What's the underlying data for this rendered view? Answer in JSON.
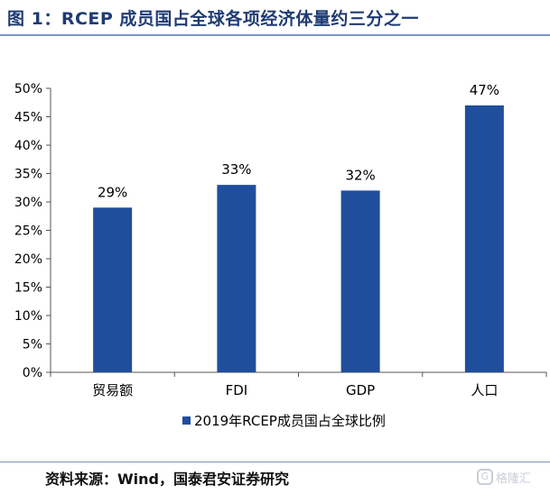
{
  "header": {
    "title": "图 1：RCEP 成员国占全球各项经济体量约三分之一"
  },
  "chart_data": {
    "type": "bar",
    "categories": [
      "贸易额",
      "FDI",
      "GDP",
      "人口"
    ],
    "series": [
      {
        "name": "2019年RCEP成员国占全球比例",
        "values": [
          29,
          33,
          32,
          47
        ],
        "color": "#1f4e9c"
      }
    ],
    "data_labels": [
      "29%",
      "33%",
      "32%",
      "47%"
    ],
    "y_ticks": [
      "0%",
      "5%",
      "10%",
      "15%",
      "20%",
      "25%",
      "30%",
      "35%",
      "40%",
      "45%",
      "50%"
    ],
    "ylim": [
      0,
      50
    ],
    "grid": false,
    "legend_position": "bottom"
  },
  "footer": {
    "source": "资料来源：Wind，国泰君安证券研究",
    "watermark": "格隆汇",
    "watermark_icon": "G"
  }
}
